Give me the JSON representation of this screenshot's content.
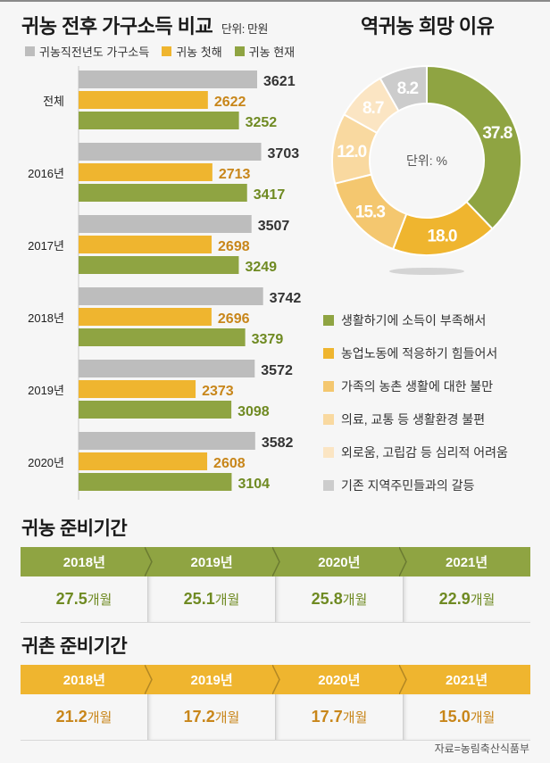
{
  "colors": {
    "before": "#bdbdbd",
    "first_year": "#efb52f",
    "current": "#8fa442",
    "before_text": "#333333",
    "first_year_text": "#c8861a",
    "current_text": "#6f8a22",
    "pie": [
      "#8fa442",
      "#efb52f",
      "#f4c76f",
      "#f9d9a0",
      "#fbe5c3",
      "#cccccc"
    ]
  },
  "income_section": {
    "title": "귀농 전후 가구소득 비교",
    "unit": "단위: 만원",
    "legend": [
      "귀농직전년도 가구소득",
      "귀농 첫해",
      "귀농 현재"
    ]
  },
  "reason_section": {
    "title": "역귀농 희망 이유",
    "center_label": "단위: %",
    "legend": [
      "생활하기에 소득이 부족해서",
      "농업노동에 적응하기 힘들어서",
      "가족의 농촌 생활에 대한 불만",
      "의료, 교통 등 생활환경 불편",
      "외로움, 고립감 등 심리적 어려움",
      "기존 지역주민들과의 갈등"
    ]
  },
  "chart_data": [
    {
      "type": "bar",
      "orientation": "horizontal",
      "title": "귀농 전후 가구소득 비교",
      "unit": "만원",
      "categories": [
        "전체",
        "2016년",
        "2017년",
        "2018년",
        "2019년",
        "2020년"
      ],
      "series": [
        {
          "name": "귀농직전년도 가구소득",
          "values": [
            3621,
            3703,
            3507,
            3742,
            3572,
            3582
          ]
        },
        {
          "name": "귀농 첫해",
          "values": [
            2622,
            2713,
            2698,
            2696,
            2373,
            2608
          ]
        },
        {
          "name": "귀농 현재",
          "values": [
            3252,
            3417,
            3249,
            3379,
            3098,
            3104
          ]
        }
      ],
      "legend": "top-left"
    },
    {
      "type": "pie",
      "variant": "donut",
      "title": "역귀농 희망 이유",
      "unit": "%",
      "labels": [
        "생활하기에 소득이 부족해서",
        "농업노동에 적응하기 힘들어서",
        "가족의 농촌 생활에 대한 불만",
        "의료, 교통 등 생활환경 불편",
        "외로움, 고립감 등 심리적 어려움",
        "기존 지역주민들과의 갈등"
      ],
      "values": [
        37.8,
        18.0,
        15.3,
        12.0,
        8.7,
        8.2
      ],
      "value_labels": [
        "37.8",
        "18.0",
        "15.3",
        "12.0",
        "8.7",
        "8.2"
      ],
      "legend": "bottom"
    },
    {
      "type": "table",
      "title": "귀농 준비기간",
      "years": [
        "2018년",
        "2019년",
        "2020년",
        "2021년"
      ],
      "values": [
        27.5,
        25.1,
        25.8,
        22.9
      ],
      "value_labels": [
        "27.5",
        "25.1",
        "25.8",
        "22.9"
      ],
      "unit": "개월"
    },
    {
      "type": "table",
      "title": "귀촌 준비기간",
      "years": [
        "2018년",
        "2019년",
        "2020년",
        "2021년"
      ],
      "values": [
        21.2,
        17.2,
        17.7,
        15.0
      ],
      "value_labels": [
        "21.2",
        "17.2",
        "17.7",
        "15.0"
      ],
      "unit": "개월"
    }
  ],
  "farm_prep": {
    "title": "귀농 준비기간",
    "header_color": "#8fa442",
    "text_color": "#6f8a22",
    "years": [
      "2018년",
      "2019년",
      "2020년",
      "2021년"
    ],
    "values": [
      "27.5",
      "25.1",
      "25.8",
      "22.9"
    ],
    "unit": "개월"
  },
  "village_prep": {
    "title": "귀촌 준비기간",
    "header_color": "#efb52f",
    "text_color": "#c8861a",
    "years": [
      "2018년",
      "2019년",
      "2020년",
      "2021년"
    ],
    "values": [
      "21.2",
      "17.2",
      "17.7",
      "15.0"
    ],
    "unit": "개월"
  },
  "source": "자료=농림축산식품부"
}
